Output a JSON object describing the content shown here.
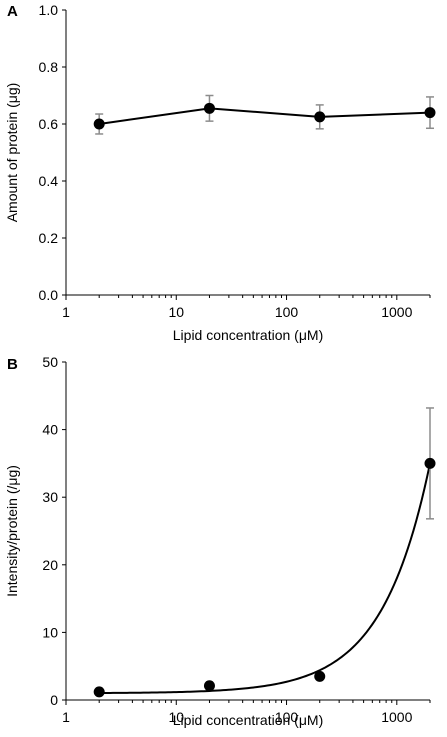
{
  "chart_data": [
    {
      "panel": "A",
      "type": "line",
      "xscale": "log",
      "xlim": [
        1,
        2000
      ],
      "ylim": [
        0.0,
        1.0
      ],
      "xticks": [
        "1",
        "10",
        "100",
        "1000"
      ],
      "yticks": [
        "0.0",
        "0.2",
        "0.4",
        "0.6",
        "0.8",
        "1.0"
      ],
      "xlabel": "Lipid concentration (μM)",
      "ylabel": "Amount of protein (μg)",
      "grid": false,
      "series": [
        {
          "x": [
            2,
            20,
            200,
            2000
          ],
          "y": [
            0.6,
            0.655,
            0.625,
            0.64
          ],
          "err": [
            0.035,
            0.045,
            0.042,
            0.055
          ],
          "marker": "circle",
          "line": "straight"
        }
      ]
    },
    {
      "panel": "B",
      "type": "scatter",
      "xscale": "log",
      "xlim": [
        1,
        2000
      ],
      "ylim": [
        0,
        50
      ],
      "xticks": [
        "1",
        "10",
        "100",
        "1000"
      ],
      "yticks": [
        "0",
        "10",
        "20",
        "30",
        "40",
        "50"
      ],
      "xlabel": "Lipid concentration (μM)",
      "ylabel": "Intensity/protein (/μg)",
      "grid": false,
      "series": [
        {
          "x": [
            2,
            20,
            200,
            2000
          ],
          "y": [
            1.2,
            2.1,
            3.5,
            35.0
          ],
          "err": [
            0,
            0,
            0,
            8.2
          ],
          "marker": "circle",
          "fit": "linear",
          "fit_intercept": 1.0,
          "fit_slope": 0.017
        }
      ]
    }
  ]
}
